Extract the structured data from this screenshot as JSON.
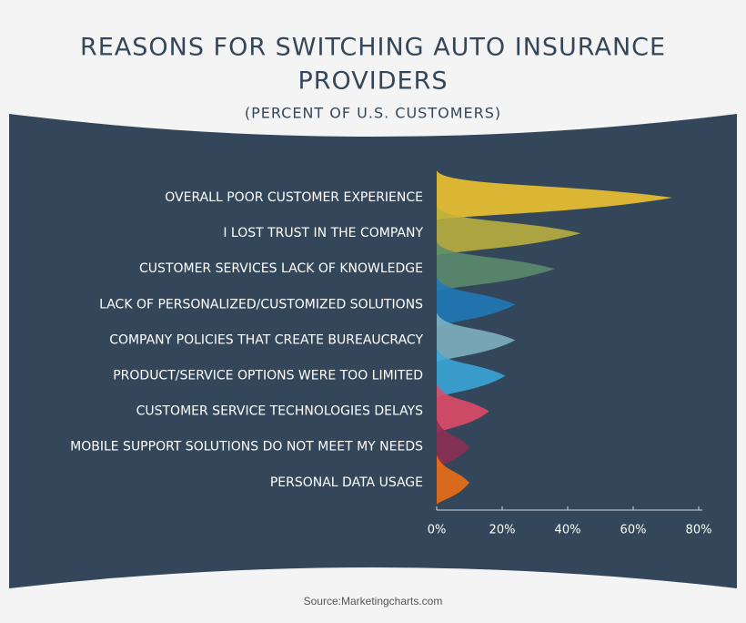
{
  "chart_data": {
    "type": "ridge",
    "title": [
      "REASONS FOR SWITCHING AUTO INSURANCE",
      "PROVIDERS"
    ],
    "subtitle": "(PERCENT OF U.S. CUSTOMERS)",
    "source": "Source:Marketingcharts.com",
    "categories": [
      "OVERALL POOR CUSTOMER EXPERIENCE",
      "I LOST TRUST IN THE COMPANY",
      "CUSTOMER SERVICES LACK OF KNOWLEDGE",
      "LACK OF PERSONALIZED/CUSTOMIZED SOLUTIONS",
      "COMPANY POLICIES THAT CREATE BUREAUCRACY",
      "PRODUCT/SERVICE OPTIONS WERE TOO LIMITED",
      "CUSTOMER SERVICE TECHNOLOGIES DELAYS",
      "MOBILE SUPPORT SOLUTIONS DO NOT MEET MY NEEDS",
      "PERSONAL DATA USAGE"
    ],
    "values": [
      72,
      44,
      36,
      24,
      24,
      21,
      16,
      10,
      10
    ],
    "colors": [
      "#f2c62f",
      "#bdb23c",
      "#5b8c6c",
      "#1f7ab8",
      "#7fb4c1",
      "#3aa7da",
      "#e14b66",
      "#8e2e54",
      "#f07014"
    ],
    "xlim": [
      0,
      80
    ],
    "xticks": [
      {
        "value": 0,
        "label": "0%"
      },
      {
        "value": 20,
        "label": "20%"
      },
      {
        "value": 40,
        "label": "40%"
      },
      {
        "value": 60,
        "label": "60%"
      },
      {
        "value": 80,
        "label": "80%"
      }
    ]
  }
}
